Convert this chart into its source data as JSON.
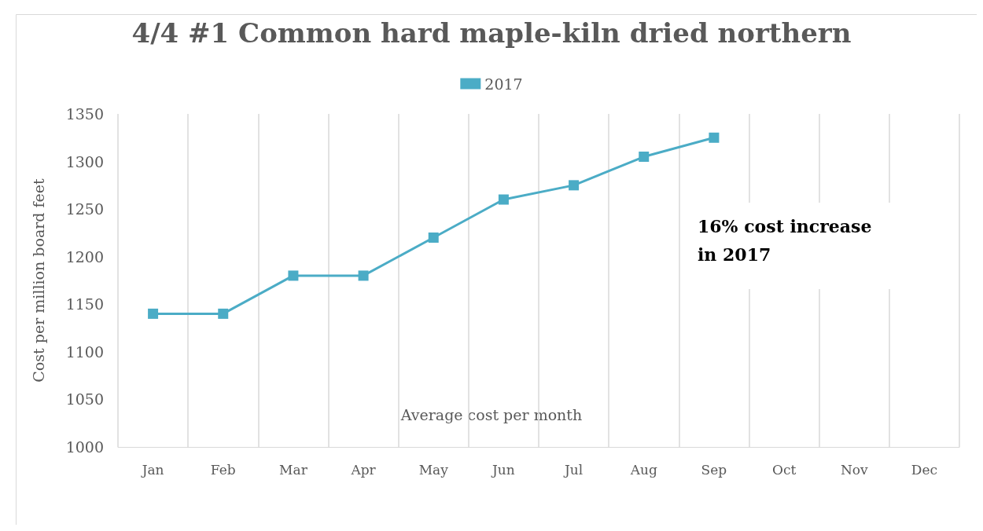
{
  "chart_data": {
    "type": "line",
    "title": "4/4 #1 Common hard maple-kiln dried northern",
    "ylabel": "Cost per million board feet",
    "xlabel": "Average cost per month",
    "categories": [
      "Jan",
      "Feb",
      "Mar",
      "Apr",
      "May",
      "Jun",
      "Jul",
      "Aug",
      "Sep",
      "Oct",
      "Nov",
      "Dec"
    ],
    "series": [
      {
        "name": "2017",
        "color": "#4bacc6",
        "values": [
          1140,
          1140,
          1180,
          1180,
          1220,
          1260,
          1275,
          1305,
          1325,
          null,
          null,
          null
        ]
      }
    ],
    "ylim": [
      1000,
      1350
    ],
    "yticks": [
      1000,
      1050,
      1100,
      1150,
      1200,
      1250,
      1300,
      1350
    ],
    "grid": "x",
    "legend": "top",
    "marker": "square",
    "line_style": "solid",
    "annotations": [
      "16% cost increase in 2017"
    ]
  }
}
